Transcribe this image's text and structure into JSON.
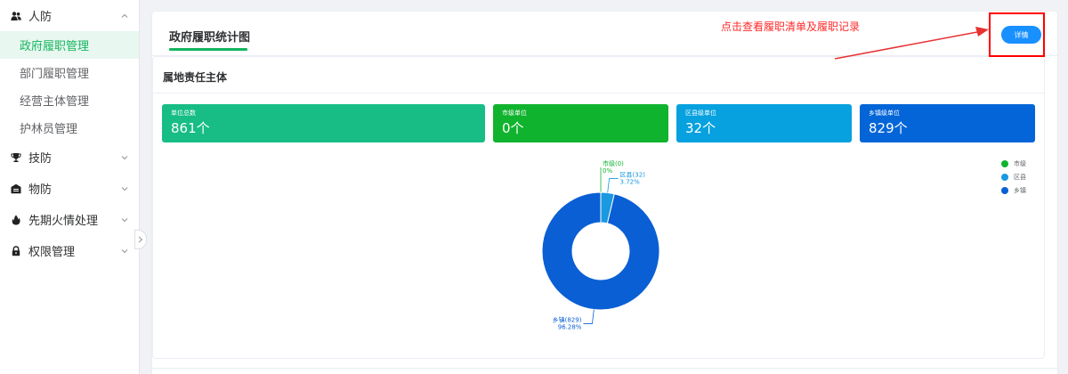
{
  "sidebar": {
    "groups": [
      {
        "label": "人防",
        "icon": "users-icon",
        "expanded": true,
        "items": [
          {
            "label": "政府履职管理",
            "active": true
          },
          {
            "label": "部门履职管理",
            "active": false
          },
          {
            "label": "经营主体管理",
            "active": false
          },
          {
            "label": "护林员管理",
            "active": false
          }
        ]
      },
      {
        "label": "技防",
        "icon": "trophy-icon",
        "expanded": false
      },
      {
        "label": "物防",
        "icon": "storehouse-icon",
        "expanded": false
      },
      {
        "label": "先期火情处理",
        "icon": "fire-icon",
        "expanded": false
      },
      {
        "label": "权限管理",
        "icon": "lock-icon",
        "expanded": false
      }
    ]
  },
  "tab": {
    "title": "政府履职统计图"
  },
  "section": {
    "title": "属地责任主体"
  },
  "stats": [
    {
      "label": "单位总数",
      "value": "861个",
      "color": "#17bd85"
    },
    {
      "label": "市级单位",
      "value": "0个",
      "color": "#10b32e"
    },
    {
      "label": "区县级单位",
      "value": "32个",
      "color": "#06a1de"
    },
    {
      "label": "乡镇级单位",
      "value": "829个",
      "color": "#0465d8"
    }
  ],
  "detail_button": {
    "label": "详情"
  },
  "annotation": {
    "text": "点击查看履职清单及履职记录",
    "color": "#ff0000"
  },
  "chart_data": {
    "type": "pie",
    "variant": "donut",
    "legend_position": "top-right",
    "slices": [
      {
        "name": "市级",
        "value": 0,
        "percent": "0%",
        "label": "市级(0)",
        "color": "#10b32e"
      },
      {
        "name": "区县",
        "value": 32,
        "percent": "3.72%",
        "label": "区县(32)",
        "color": "#1a98e0"
      },
      {
        "name": "乡镇",
        "value": 829,
        "percent": "96.28%",
        "label": "乡镇(829)",
        "color": "#0a5fd4"
      }
    ]
  }
}
